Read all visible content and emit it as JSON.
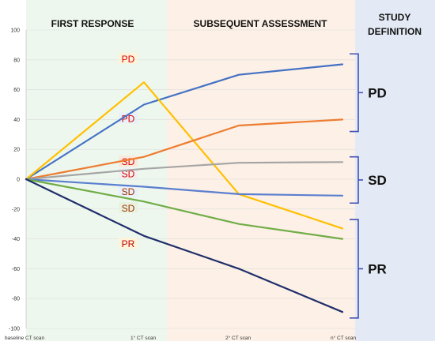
{
  "chart_data": {
    "type": "line",
    "title": "",
    "xlabel": "",
    "ylabel": "",
    "ylim": [
      -100,
      100
    ],
    "yticks": [
      100,
      80,
      60,
      40,
      20,
      0,
      -20,
      -40,
      -60,
      -80,
      -100
    ],
    "x": [
      "baseline CT scan",
      "1° CT scan",
      "2° CT scan",
      "n° CT scan"
    ],
    "grid": true,
    "series": [
      {
        "color": "#4472C4",
        "values": [
          0,
          50,
          70,
          77
        ]
      },
      {
        "color": "#FFC000",
        "values": [
          0,
          65,
          -10,
          -33
        ]
      },
      {
        "color": "#ED7D31",
        "values": [
          0,
          15,
          36,
          40
        ]
      },
      {
        "color": "#A5A5A5",
        "values": [
          0,
          7,
          11,
          11.5
        ]
      },
      {
        "color": "#5B7FCF",
        "values": [
          0,
          -5,
          -10,
          -11
        ]
      },
      {
        "color": "#70AD47",
        "values": [
          0,
          -15,
          -30,
          -40
        ]
      },
      {
        "color": "#1F2F6B",
        "values": [
          0,
          -38,
          -60,
          -89
        ]
      }
    ],
    "bands": [
      {
        "label": "FIRST RESPONSE",
        "color": "#EEF7EE"
      },
      {
        "label": "SUBSEQUENT ASSESSMENT",
        "color": "#FDF0E6"
      },
      {
        "label_line1": "STUDY",
        "label_line2": "DEFINITION",
        "color": "#E4EAF5"
      }
    ],
    "response_labels": [
      {
        "text": "PD",
        "y": 80,
        "color": "#E00000",
        "highlight": "#FFF3D6"
      },
      {
        "text": "PD",
        "y": 40,
        "color": "#E00000",
        "highlight": "#E6EEFA"
      },
      {
        "text": "SD",
        "y": 11,
        "color": "#E00000",
        "highlight": "#FCE6D6"
      },
      {
        "text": "SD",
        "y": 3,
        "color": "#E00000",
        "highlight": "#EEEEEE"
      },
      {
        "text": "SD",
        "y": -9,
        "color": "#A03000",
        "highlight": "#E6EEFA"
      },
      {
        "text": "SD",
        "y": -20,
        "color": "#A03000",
        "highlight": "#E6F2DC"
      },
      {
        "text": "PR",
        "y": -44,
        "color": "#C00000",
        "highlight": "#FFF3D6"
      }
    ],
    "study_groups": [
      {
        "label": "PD",
        "top": 84,
        "bottom": 32
      },
      {
        "label": "SD",
        "top": 15,
        "bottom": -16
      },
      {
        "label": "PR",
        "top": -27,
        "bottom": -93
      }
    ],
    "bracket_color": "#3F4FB8"
  }
}
